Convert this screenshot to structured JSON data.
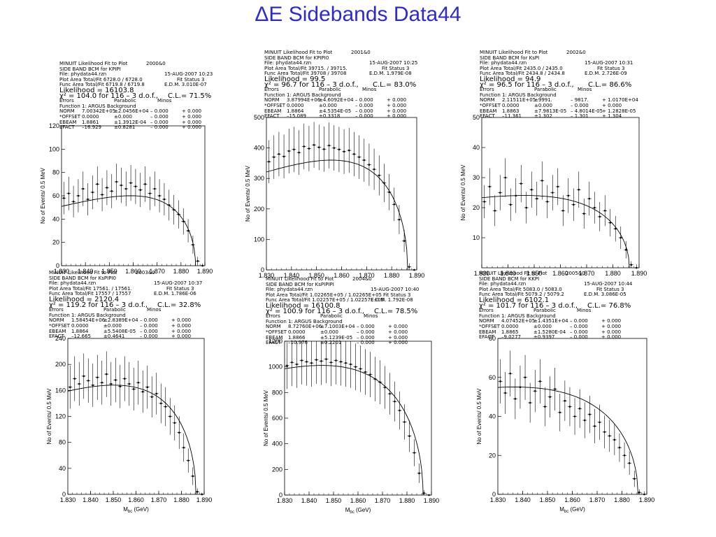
{
  "title": "ΔE Sidebands Data44",
  "xlabel": "M",
  "xlabel_sub": "bc",
  "xlabel_unit": " (GeV)",
  "ylabel": "No of Events/ 0.5 MeV",
  "fit_header": "MINUIT Likelihood Fit to Plot",
  "col_errors": "Errors",
  "col_parabolic": "Parabolic",
  "col_minos": "Minos",
  "function": "Function  1: ARGUS Background",
  "panels": [
    {
      "plot_id": "2000&0",
      "mode": "SIDE BAND BCM for KPIPI",
      "date": "15-AUG-2007 10:23",
      "file": "File: phydata44.rzn",
      "fit_status": "Fit Status  3",
      "plot_area": "Plot Area Total/Fit   6728.0 / 6728.0",
      "func_area": "Func Area Total/Fit  6719.8 / 6719.8",
      "edm": "E.D.M. 3.010E-07",
      "likelihood": "Likelihood = 16103.8",
      "chi2": "χ² =   104.0 for 116 –  3 d.o.f.,",
      "cl": "C.L.= 71.5%",
      "params": [
        {
          "name": "NORM",
          "val": "7.00342E+05",
          "err": "±2.0456E+04",
          "m1": "– 0.000",
          "m2": "+ 0.000"
        },
        {
          "name": "*OFFSET",
          "val": "0.0000",
          "err": "±0.000",
          "m1": "– 0.000",
          "m2": "+ 0.000"
        },
        {
          "name": "EBEAM",
          "val": "1.8861",
          "err": "±1.3912E-04",
          "m1": "– 0.000",
          "m2": "+ 0.000"
        },
        {
          "name": "EFACT",
          "val": "–16.929",
          "err": "±0.8281",
          "m1": "– 0.000",
          "m2": "+ 0.000"
        }
      ]
    },
    {
      "plot_id": "2001&0",
      "mode": "SIDE BAND BCM for KPIPI0",
      "date": "15-AUG-2007 10:25",
      "file": "File: phydata44.rzn",
      "fit_status": "Fit Status  3",
      "plot_area": "Plot Area Total/Fit   39715. / 39715.",
      "func_area": "Func Area Total/Fit  39708 / 39708",
      "edm": "E.D.M. 1.979E-08",
      "likelihood": "Likelihood =    99.5",
      "chi2": "χ² =    96.7 for 116 –  3 d.o.f.,",
      "cl": "C.L.= 83.0%",
      "params": [
        {
          "name": "NORM",
          "val": "3.87994E+06",
          "err": "±4.6092E+04",
          "m1": "– 0.000",
          "m2": "+ 0.000"
        },
        {
          "name": "*OFFSET",
          "val": "0.0000",
          "err": "±0.000",
          "m1": "– 0.000",
          "m2": "+ 0.000"
        },
        {
          "name": "EBEAM",
          "val": "1.8864",
          "err": "±4.5354E-05",
          "m1": "– 0.000",
          "m2": "+ 0.000"
        },
        {
          "name": "EFACT",
          "val": "–15.089",
          "err": "±0.3318",
          "m1": "– 0.000",
          "m2": "+ 0.000"
        }
      ]
    },
    {
      "plot_id": "2002&0",
      "mode": "SIDE BAND BCM for KsPI",
      "date": "15-AUG-2007 10:31",
      "file": "File: phydata44.rzn",
      "fit_status": "Fit Status  3",
      "plot_area": "Plot Area Total/Fit   2435.0 / 2435.0",
      "func_area": "Func Area Total/Fit  2434.8 / 2434.8",
      "edm": "E.D.M. 2.726E-09",
      "likelihood": "Likelihood =    94.9",
      "chi2": "χ² =    96.5 for 116 –  3 d.o.f.,",
      "cl": "C.L.= 86.6%",
      "params": [
        {
          "name": "NORM",
          "val": "2.11511E+05",
          "err": "±9991.",
          "m1": "– 9817.",
          "m2": "+ 1.0170E+04"
        },
        {
          "name": "*OFFSET",
          "val": "0.0000",
          "err": "±0.000",
          "m1": "– 0.000",
          "m2": "+ 0.000"
        },
        {
          "name": "EBEAM",
          "val": "1.8863",
          "err": "±7.9813E-05",
          "m1": "– 4.8014E-05",
          "m2": "+ 1.2828E-05"
        },
        {
          "name": "EFACT",
          "val": "–11.361",
          "err": "±1.302",
          "m1": "– 1.301",
          "m2": "+ 1.304"
        }
      ]
    },
    {
      "plot_id": "2003&0",
      "mode": "SIDE BAND BCM for KsPIPI0",
      "date": "15-AUG-2007 10:37",
      "file": "File: phydata44.rzn",
      "fit_status": "Fit Status  3",
      "plot_area": "Plot Area Total/Fit   17561. / 17561.",
      "func_area": "Func Area Total/Fit  17557 / 17557",
      "edm": "E.D.M. 1.786E-06",
      "likelihood": "Likelihood =  2120.4",
      "chi2": "χ² =   119.2 for 116 –  3 d.o.f.,",
      "cl": "C.L.= 32.8%",
      "params": [
        {
          "name": "NORM",
          "val": "1.58454E+06",
          "err": "±2.8389E+04",
          "m1": "– 0.000",
          "m2": "+ 0.000"
        },
        {
          "name": "*OFFSET",
          "val": "0.0000",
          "err": "±0.000",
          "m1": "– 0.000",
          "m2": "+ 0.000"
        },
        {
          "name": "EBEAM",
          "val": "1.8864",
          "err": "±5.5408E-05",
          "m1": "– 0.000",
          "m2": "+ 0.000"
        },
        {
          "name": "EFACT",
          "val": "–12.665",
          "err": "±0.4641",
          "m1": "– 0.000",
          "m2": "+ 0.000"
        }
      ]
    },
    {
      "plot_id": "2004&0",
      "mode": "SIDE BAND BCM for KsPIPIPI",
      "date": "15-AUG-2007 10:40",
      "file": "File: phydata44.rzn",
      "fit_status": "Fit Status  3",
      "plot_area": "Plot Area Total/Fit   1.02265E+05 / 1.02265E+05",
      "func_area": "Func Area Total/Fit  1.02257E+05 / 1.02257E+05",
      "edm": "E.D.M. 1.792E-08",
      "likelihood": "Likelihood = 16100.8",
      "chi2": "χ² =   100.9 for 116 –  3 d.o.f.,",
      "cl": "C.L.= 78.5%",
      "params": [
        {
          "name": "NORM",
          "val": "8.72760E+06",
          "err": "±7.1003E+04",
          "m1": "– 0.000",
          "m2": "+ 0.000"
        },
        {
          "name": "*OFFSET",
          "val": "0.0000",
          "err": "±0.000",
          "m1": "– 0.000",
          "m2": "+ 0.000"
        },
        {
          "name": "EBEAM",
          "val": "1.8866",
          "err": "±5.1239E-05",
          "m1": "– 0.000",
          "m2": "+ 0.000"
        },
        {
          "name": "EFACT",
          "val": "–10.976",
          "err": "±0.2201",
          "m1": "– 0.000",
          "m2": "+ 0.000"
        }
      ]
    },
    {
      "plot_id": "2005&0",
      "mode": "SIDE BAND BCM for KKPI",
      "date": "15-AUG-2007 10:44",
      "file": "File: phydata44.rzn",
      "fit_status": "Fit Status  3",
      "plot_area": "Plot Area Total/Fit   5083.0 / 5083.0",
      "func_area": "Func Area Total/Fit  5079.2 / 5079.2",
      "edm": "E.D.M. 3.086E-05",
      "likelihood": "Likelihood =  6102.1",
      "chi2": "χ² =   101.7 for 116 –  3 d.o.f.,",
      "cl": "C.L.= 76.8%",
      "params": [
        {
          "name": "NORM",
          "val": "4.07452E+05",
          "err": "±1.4351E+04",
          "m1": "– 0.000",
          "m2": "+ 0.000"
        },
        {
          "name": "*OFFSET",
          "val": "0.0000",
          "err": "±0.000",
          "m1": "– 0.000",
          "m2": "+ 0.000"
        },
        {
          "name": "EBEAM",
          "val": "1.8865",
          "err": "±1.5280E-04",
          "m1": "– 0.000",
          "m2": "+ 0.000"
        },
        {
          "name": "EFACT",
          "val": "–9.0277",
          "err": "±0.9397",
          "m1": "– 0.000",
          "m2": "+ 0.000"
        }
      ]
    }
  ],
  "chart_data": [
    {
      "type": "scatter",
      "mode": "KPIPI",
      "xlim": [
        1.83,
        1.89
      ],
      "ylim": [
        0,
        120
      ],
      "xticks": [
        "1.830",
        "1.840",
        "1.850",
        "1.860",
        "1.870",
        "1.880",
        "1.890"
      ],
      "yticks": [
        "0",
        "20",
        "40",
        "60",
        "80",
        "100",
        "120"
      ],
      "fit": {
        "norm": 60,
        "peak": 1.86,
        "endpoint": 1.8861,
        "efact": -16.929
      },
      "x": [
        1.831,
        1.833,
        1.835,
        1.837,
        1.839,
        1.841,
        1.843,
        1.845,
        1.847,
        1.849,
        1.851,
        1.853,
        1.855,
        1.857,
        1.859,
        1.861,
        1.863,
        1.865,
        1.867,
        1.869,
        1.871,
        1.873,
        1.875,
        1.877,
        1.879,
        1.881,
        1.883,
        1.885,
        1.887,
        1.889
      ],
      "y": [
        58,
        62,
        55,
        60,
        66,
        57,
        63,
        70,
        61,
        67,
        64,
        72,
        69,
        66,
        71,
        68,
        65,
        70,
        62,
        66,
        60,
        57,
        52,
        48,
        44,
        38,
        30,
        18,
        4,
        0
      ]
    },
    {
      "type": "scatter",
      "mode": "KPIPI0",
      "xlim": [
        1.83,
        1.89
      ],
      "ylim": [
        0,
        500
      ],
      "xticks": [
        "1.830",
        "1.840",
        "1.850",
        "1.860",
        "1.870",
        "1.880",
        "1.890"
      ],
      "yticks": [
        "0",
        "100",
        "200",
        "300",
        "400",
        "500"
      ],
      "fit": {
        "norm": 360,
        "peak": 1.855,
        "endpoint": 1.8864,
        "efact": -15.089
      },
      "x": [
        1.831,
        1.833,
        1.835,
        1.837,
        1.839,
        1.841,
        1.843,
        1.845,
        1.847,
        1.849,
        1.851,
        1.853,
        1.855,
        1.857,
        1.859,
        1.861,
        1.863,
        1.865,
        1.867,
        1.869,
        1.871,
        1.873,
        1.875,
        1.877,
        1.879,
        1.881,
        1.883,
        1.885,
        1.887,
        1.889
      ],
      "y": [
        355,
        370,
        380,
        372,
        390,
        395,
        385,
        405,
        398,
        410,
        402,
        396,
        408,
        400,
        395,
        388,
        392,
        380,
        370,
        360,
        345,
        330,
        310,
        285,
        255,
        215,
        165,
        95,
        10,
        0
      ]
    },
    {
      "type": "scatter",
      "mode": "KsPI",
      "xlim": [
        1.83,
        1.89
      ],
      "ylim": [
        0,
        50
      ],
      "xticks": [
        "1.830",
        "1.840",
        "1.850",
        "1.860",
        "1.870",
        "1.880",
        "1.890"
      ],
      "yticks": [
        "10",
        "20",
        "30",
        "40",
        "50"
      ],
      "fit": {
        "norm": 24,
        "peak": 1.85,
        "endpoint": 1.8863,
        "efact": -11.361
      },
      "x": [
        1.831,
        1.833,
        1.835,
        1.837,
        1.839,
        1.841,
        1.843,
        1.845,
        1.847,
        1.849,
        1.851,
        1.853,
        1.855,
        1.857,
        1.859,
        1.861,
        1.863,
        1.865,
        1.867,
        1.869,
        1.871,
        1.873,
        1.875,
        1.877,
        1.879,
        1.881,
        1.883,
        1.885,
        1.887,
        1.889
      ],
      "y": [
        22,
        27,
        19,
        25,
        30,
        21,
        24,
        28,
        20,
        26,
        23,
        29,
        22,
        25,
        27,
        19,
        24,
        21,
        26,
        18,
        23,
        20,
        17,
        19,
        15,
        13,
        10,
        6,
        1,
        0
      ]
    },
    {
      "type": "scatter",
      "mode": "KsPIPI0",
      "xlim": [
        1.83,
        1.89
      ],
      "ylim": [
        0,
        240
      ],
      "xticks": [
        "1.830",
        "1.840",
        "1.850",
        "1.860",
        "1.870",
        "1.880",
        "1.890"
      ],
      "yticks": [
        "0",
        "40",
        "80",
        "120",
        "160",
        "200",
        "240"
      ],
      "fit": {
        "norm": 168,
        "peak": 1.852,
        "endpoint": 1.8864,
        "efact": -12.665
      },
      "x": [
        1.831,
        1.833,
        1.835,
        1.837,
        1.839,
        1.841,
        1.843,
        1.845,
        1.847,
        1.849,
        1.851,
        1.853,
        1.855,
        1.857,
        1.859,
        1.861,
        1.863,
        1.865,
        1.867,
        1.869,
        1.871,
        1.873,
        1.875,
        1.877,
        1.879,
        1.881,
        1.883,
        1.885,
        1.887,
        1.889
      ],
      "y": [
        165,
        178,
        170,
        182,
        175,
        168,
        180,
        172,
        185,
        170,
        176,
        166,
        178,
        170,
        162,
        172,
        158,
        165,
        150,
        155,
        140,
        135,
        120,
        110,
        95,
        72,
        52,
        28,
        4,
        0
      ]
    },
    {
      "type": "scatter",
      "mode": "KsPIPIPI",
      "xlim": [
        1.83,
        1.89
      ],
      "ylim": [
        0,
        1200
      ],
      "xticks": [
        "1.830",
        "1.840",
        "1.850",
        "1.860",
        "1.870",
        "1.880",
        "1.890"
      ],
      "yticks": [
        "0",
        "200",
        "400",
        "600",
        "800",
        "1000",
        "1200"
      ],
      "fit": {
        "norm": 1010,
        "peak": 1.848,
        "endpoint": 1.8866,
        "efact": -10.976
      },
      "x": [
        1.831,
        1.833,
        1.835,
        1.837,
        1.839,
        1.841,
        1.843,
        1.845,
        1.847,
        1.849,
        1.851,
        1.853,
        1.855,
        1.857,
        1.859,
        1.861,
        1.863,
        1.865,
        1.867,
        1.869,
        1.871,
        1.873,
        1.875,
        1.877,
        1.879,
        1.881,
        1.883,
        1.885,
        1.887,
        1.889
      ],
      "y": [
        1010,
        1035,
        1020,
        1050,
        1040,
        1030,
        1055,
        1045,
        1060,
        1035,
        1050,
        1040,
        1030,
        1020,
        1000,
        985,
        960,
        940,
        905,
        880,
        840,
        790,
        730,
        660,
        570,
        460,
        330,
        170,
        15,
        0
      ]
    },
    {
      "type": "scatter",
      "mode": "KKPI",
      "xlim": [
        1.83,
        1.89
      ],
      "ylim": [
        0,
        80
      ],
      "xticks": [
        "1.830",
        "1.840",
        "1.850",
        "1.860",
        "1.870",
        "1.880",
        "1.890"
      ],
      "yticks": [
        "0",
        "20",
        "40",
        "60",
        "80"
      ],
      "fit": {
        "norm": 55,
        "peak": 1.84,
        "endpoint": 1.8865,
        "efact": -9.0277
      },
      "x": [
        1.831,
        1.833,
        1.835,
        1.837,
        1.839,
        1.841,
        1.843,
        1.845,
        1.847,
        1.849,
        1.851,
        1.853,
        1.855,
        1.857,
        1.859,
        1.861,
        1.863,
        1.865,
        1.867,
        1.869,
        1.871,
        1.873,
        1.875,
        1.877,
        1.879,
        1.881,
        1.883,
        1.885,
        1.887,
        1.889
      ],
      "y": [
        58,
        52,
        62,
        49,
        55,
        60,
        47,
        53,
        58,
        45,
        50,
        54,
        42,
        48,
        45,
        40,
        44,
        38,
        41,
        35,
        37,
        32,
        30,
        28,
        24,
        20,
        16,
        8,
        1,
        0
      ]
    }
  ]
}
